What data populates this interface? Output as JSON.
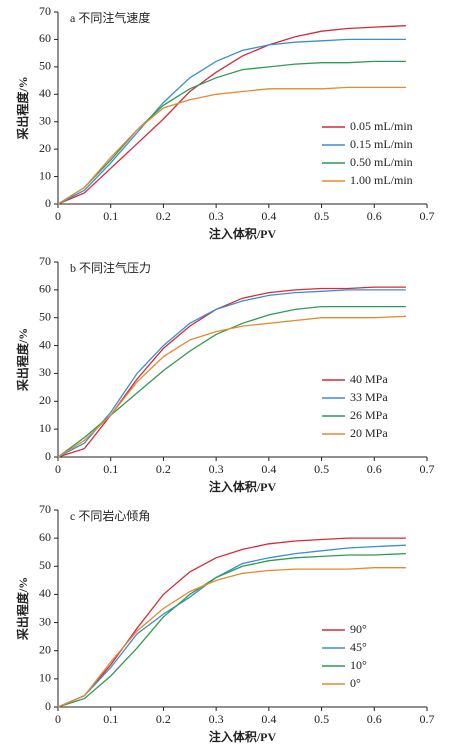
{
  "chart_data": [
    {
      "type": "line",
      "title": "a 不同注气速度",
      "x_label": "注入体积/PV",
      "y_label": "采出程度/%",
      "x": [
        0,
        0.05,
        0.1,
        0.15,
        0.2,
        0.25,
        0.3,
        0.35,
        0.4,
        0.45,
        0.5,
        0.55,
        0.6,
        0.66
      ],
      "xlim": [
        0,
        0.7
      ],
      "xticks": [
        0,
        0.1,
        0.2,
        0.3,
        0.4,
        0.5,
        0.6,
        0.7
      ],
      "ylim": [
        0,
        70
      ],
      "yticks": [
        0,
        10,
        20,
        30,
        40,
        50,
        60,
        70
      ],
      "legend": "lower right",
      "series": [
        {
          "name": "0.05 mL/min",
          "color": "#d42a3c",
          "values": [
            0,
            4,
            13,
            22,
            31,
            41,
            48,
            54,
            58,
            61,
            63,
            64,
            64.5,
            65
          ]
        },
        {
          "name": "0.15 mL/min",
          "color": "#3a8fd0",
          "values": [
            0,
            5,
            15,
            26,
            37,
            46,
            52,
            56,
            58,
            59,
            59.5,
            60,
            60,
            60
          ]
        },
        {
          "name": "0.50 mL/min",
          "color": "#2e9a55",
          "values": [
            0,
            6,
            16,
            27,
            36,
            42,
            46,
            49,
            50,
            51,
            51.5,
            51.5,
            52,
            52
          ]
        },
        {
          "name": "1.00 mL/min",
          "color": "#e8892e",
          "values": [
            0,
            6,
            17,
            27,
            35,
            38,
            40,
            41,
            42,
            42,
            42,
            42.5,
            42.5,
            42.5
          ]
        }
      ]
    },
    {
      "type": "line",
      "title": "b 不同注气压力",
      "x_label": "注入体积/PV",
      "y_label": "采出程度/%",
      "x": [
        0,
        0.05,
        0.1,
        0.15,
        0.2,
        0.25,
        0.3,
        0.35,
        0.4,
        0.45,
        0.5,
        0.55,
        0.6,
        0.66
      ],
      "xlim": [
        0,
        0.7
      ],
      "xticks": [
        0,
        0.1,
        0.2,
        0.3,
        0.4,
        0.5,
        0.6,
        0.7
      ],
      "ylim": [
        0,
        70
      ],
      "yticks": [
        0,
        10,
        20,
        30,
        40,
        50,
        60,
        70
      ],
      "legend": "lower right",
      "series": [
        {
          "name": "40 MPa",
          "color": "#d42a3c",
          "values": [
            0,
            3,
            15,
            28,
            39,
            47,
            53,
            57,
            59,
            60,
            60.5,
            60.5,
            61,
            61
          ]
        },
        {
          "name": "33 MPa",
          "color": "#3a8fd0",
          "values": [
            0,
            5,
            16,
            30,
            40,
            48,
            53,
            56,
            58,
            59,
            59.5,
            60,
            60,
            60
          ]
        },
        {
          "name": "26 MPa",
          "color": "#2e9a55",
          "values": [
            0,
            7,
            15,
            23,
            31,
            38,
            44,
            48,
            51,
            53,
            54,
            54,
            54,
            54
          ]
        },
        {
          "name": "20 MPa",
          "color": "#e8892e",
          "values": [
            0,
            6,
            15,
            27,
            36,
            42,
            45,
            47,
            48,
            49,
            50,
            50,
            50,
            50.5
          ]
        }
      ]
    },
    {
      "type": "line",
      "title": "c 不同岩心倾角",
      "x_label": "注入体积/PV",
      "y_label": "采出程度/%",
      "x": [
        0,
        0.05,
        0.1,
        0.15,
        0.2,
        0.25,
        0.3,
        0.35,
        0.4,
        0.45,
        0.5,
        0.55,
        0.6,
        0.66
      ],
      "xlim": [
        0,
        0.7
      ],
      "xticks": [
        0,
        0.1,
        0.2,
        0.3,
        0.4,
        0.5,
        0.6,
        0.7
      ],
      "ylim": [
        0,
        70
      ],
      "yticks": [
        0,
        10,
        20,
        30,
        40,
        50,
        60,
        70
      ],
      "legend": "lower right",
      "series": [
        {
          "name": "90°",
          "color": "#d42a3c",
          "values": [
            0,
            4,
            15,
            28,
            40,
            48,
            53,
            56,
            58,
            59,
            59.5,
            60,
            60,
            60
          ]
        },
        {
          "name": "45°",
          "color": "#3a8fd0",
          "values": [
            0,
            4,
            14,
            26,
            33,
            39,
            46,
            51,
            53,
            54.5,
            55.5,
            56.5,
            57,
            57.5
          ]
        },
        {
          "name": "10°",
          "color": "#2e9a55",
          "values": [
            0,
            3,
            11,
            21,
            32,
            40,
            46,
            50,
            52,
            53,
            53.5,
            54,
            54,
            54.5
          ]
        },
        {
          "name": "0°",
          "color": "#e8892e",
          "values": [
            0,
            4,
            16,
            27,
            35,
            41,
            45,
            47.5,
            48.5,
            49,
            49,
            49,
            49.5,
            49.5
          ]
        }
      ]
    }
  ]
}
